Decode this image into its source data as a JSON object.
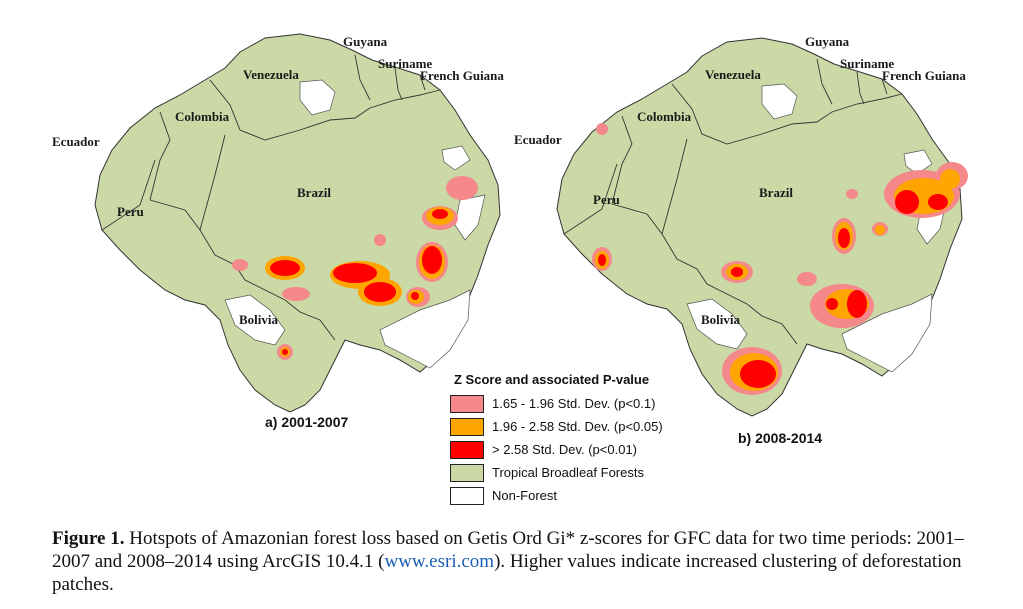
{
  "maps": [
    {
      "panel_label": "a) 2001-2007",
      "countries": [
        "Guyana",
        "Suriname",
        "French Guiana",
        "Venezuela",
        "Colombia",
        "Ecuador",
        "Brazil",
        "Peru",
        "Bolivia"
      ]
    },
    {
      "panel_label": "b) 2008-2014",
      "countries": [
        "Guyana",
        "Suriname",
        "French Guiana",
        "Venezuela",
        "Colombia",
        "Ecuador",
        "Brazil",
        "Peru",
        "Bolivia"
      ]
    }
  ],
  "legend": {
    "title": "Z Score and associated P-value",
    "items": [
      {
        "label": "1.65 - 1.96 Std. Dev. (p<0.1)",
        "color": "#f4888a"
      },
      {
        "label": "1.96 - 2.58 Std. Dev. (p<0.05)",
        "color": "#ffa500"
      },
      {
        "label": "> 2.58 Std. Dev. (p<0.01)",
        "color": "#ff0000"
      },
      {
        "label": "Tropical Broadleaf Forests",
        "color": "#cbd9a6"
      },
      {
        "label": "Non-Forest",
        "color": "#ffffff"
      }
    ]
  },
  "caption": {
    "figure_label": "Figure 1.",
    "text_before_link": "Hotspots of Amazonian forest loss based on Getis Ord Gi* z-scores for GFC data for two time periods: 2001–2007 and 2008–2014 using ArcGIS 10.4.1 (",
    "link": "www.esri.com",
    "text_after_link": "). Higher values indicate increased clustering of deforestation patches."
  }
}
